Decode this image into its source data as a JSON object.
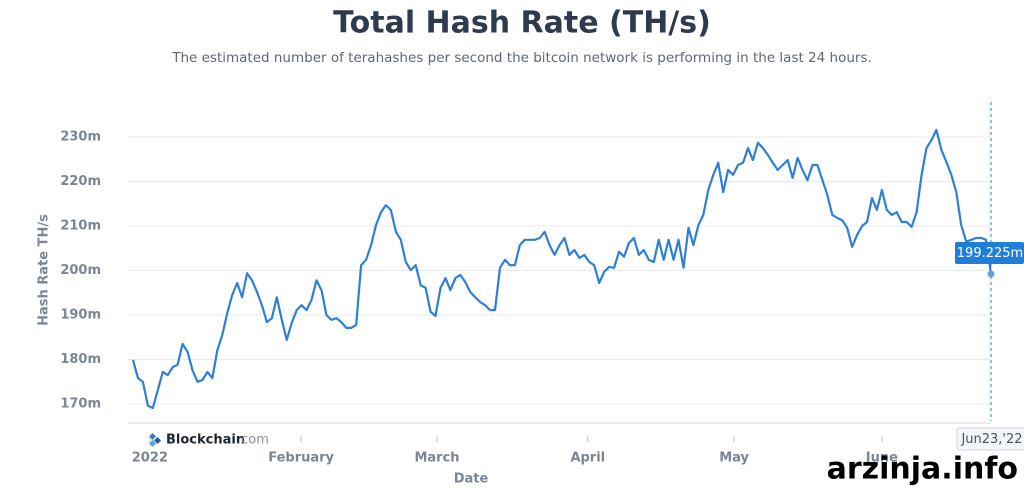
{
  "chart_data": {
    "type": "line",
    "title": "Total Hash Rate (TH/s)",
    "subtitle": "The estimated number of terahashes per second the bitcoin network is performing in the last 24 hours.",
    "y_label": "Hash Rate TH/s",
    "x_label": "Date",
    "brand": "Blockchain",
    "brand_suffix": ".com",
    "watermark": "arzinja.info",
    "color": "#2f7fd2",
    "grid": true,
    "xlim": [
      0,
      173
    ],
    "xticks": [
      {
        "value": 3.4,
        "label": "2022"
      },
      {
        "value": 33.9,
        "label": "February"
      },
      {
        "value": 61.3,
        "label": "March"
      },
      {
        "value": 91.7,
        "label": "April"
      },
      {
        "value": 121.2,
        "label": "May"
      },
      {
        "value": 151,
        "label": "June"
      }
    ],
    "ylim": [
      165,
      235
    ],
    "yticks": [
      {
        "value": 170,
        "label": "170m"
      },
      {
        "value": 180,
        "label": "180m"
      },
      {
        "value": 190,
        "label": "190m"
      },
      {
        "value": 200,
        "label": "200m"
      },
      {
        "value": 210,
        "label": "210m"
      },
      {
        "value": 220,
        "label": "220m"
      },
      {
        "value": 230,
        "label": "230m"
      }
    ],
    "tooltip": {
      "index": 173,
      "date": "Jun23,'22",
      "value": 199.225,
      "value_label": "199.225m"
    },
    "values": [
      179.9,
      175.8,
      175,
      169.6,
      169.1,
      173.1,
      177.2,
      176.5,
      178.3,
      178.8,
      183.5,
      181.7,
      177.6,
      175,
      175.4,
      177.2,
      175.8,
      182.1,
      185.5,
      190.4,
      194.5,
      197.2,
      194,
      199.4,
      197.8,
      195.2,
      192.2,
      188.4,
      189.3,
      194,
      188.9,
      184.4,
      188.2,
      191.1,
      192.2,
      191.1,
      193.4,
      197.8,
      195.6,
      190,
      188.9,
      189.3,
      188.4,
      187.1,
      187.1,
      187.8,
      201.2,
      202.4,
      205.7,
      210.2,
      213.1,
      214.7,
      213.6,
      208.7,
      206.9,
      201.9,
      200.1,
      201.2,
      196.7,
      196.1,
      190.7,
      189.8,
      196.1,
      198.3,
      195.6,
      198.3,
      199,
      197.4,
      195.2,
      194,
      192.9,
      192.2,
      191.1,
      191.1,
      200.6,
      202.4,
      201.2,
      201.2,
      205.7,
      206.9,
      206.9,
      206.9,
      207.3,
      208.7,
      205.7,
      203.5,
      205.7,
      207.3,
      203.5,
      204.6,
      202.8,
      203.5,
      201.9,
      201.2,
      197.2,
      199.7,
      200.8,
      200.6,
      204.2,
      203.1,
      206.2,
      207.3,
      203.5,
      204.6,
      202.4,
      201.9,
      206.9,
      202.4,
      206.9,
      202.4,
      206.9,
      200.6,
      209.6,
      205.7,
      210.2,
      212.5,
      218.1,
      221.5,
      224.2,
      217.6,
      222.6,
      221.5,
      223.7,
      224.2,
      227.5,
      224.8,
      228.7,
      227.5,
      226,
      224.2,
      222.6,
      223.7,
      224.8,
      220.8,
      225.3,
      222.6,
      220.3,
      223.7,
      223.7,
      220.3,
      217,
      212.5,
      211.8,
      211.3,
      209.6,
      205.3,
      208,
      210,
      210.9,
      216.3,
      213.6,
      218.1,
      213.6,
      212.5,
      213.1,
      210.9,
      210.9,
      209.8,
      213.1,
      221.5,
      227.5,
      229.3,
      231.6,
      227.1,
      224.4,
      221.5,
      217.6,
      210.2,
      206.5,
      206.9,
      207.3,
      207.3,
      206.9,
      199.225
    ]
  }
}
